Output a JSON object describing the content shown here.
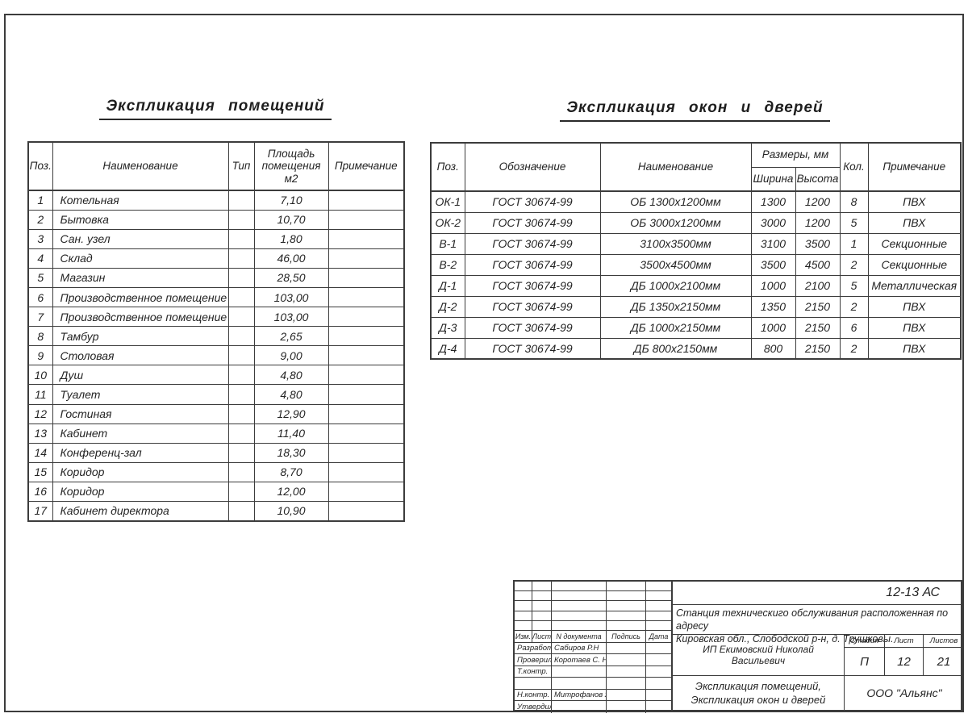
{
  "page": {
    "background": "#ffffff",
    "line_color": "#3c3c3c",
    "text_color": "#242424"
  },
  "rooms_table": {
    "title": "Экспликация помещений",
    "headers": {
      "pos": "Поз.",
      "name": "Наименование",
      "type": "Тип",
      "area": "Площадь\nпомещения\nм2",
      "note": "Примечание"
    },
    "rows": [
      {
        "pos": "1",
        "name": "Котельная",
        "type": "",
        "area": "7,10",
        "note": ""
      },
      {
        "pos": "2",
        "name": "Бытовка",
        "type": "",
        "area": "10,70",
        "note": ""
      },
      {
        "pos": "3",
        "name": "Сан. узел",
        "type": "",
        "area": "1,80",
        "note": ""
      },
      {
        "pos": "4",
        "name": "Склад",
        "type": "",
        "area": "46,00",
        "note": ""
      },
      {
        "pos": "5",
        "name": "Магазин",
        "type": "",
        "area": "28,50",
        "note": ""
      },
      {
        "pos": "6",
        "name": "Производственное помещение",
        "type": "",
        "area": "103,00",
        "note": ""
      },
      {
        "pos": "7",
        "name": "Производственное помещение",
        "type": "",
        "area": "103,00",
        "note": ""
      },
      {
        "pos": "8",
        "name": "Тамбур",
        "type": "",
        "area": "2,65",
        "note": ""
      },
      {
        "pos": "9",
        "name": "Столовая",
        "type": "",
        "area": "9,00",
        "note": ""
      },
      {
        "pos": "10",
        "name": "Душ",
        "type": "",
        "area": "4,80",
        "note": ""
      },
      {
        "pos": "11",
        "name": "Туалет",
        "type": "",
        "area": "4,80",
        "note": ""
      },
      {
        "pos": "12",
        "name": "Гостиная",
        "type": "",
        "area": "12,90",
        "note": ""
      },
      {
        "pos": "13",
        "name": "Кабинет",
        "type": "",
        "area": "11,40",
        "note": ""
      },
      {
        "pos": "14",
        "name": "Конференц-зал",
        "type": "",
        "area": "18,30",
        "note": ""
      },
      {
        "pos": "15",
        "name": "Коридор",
        "type": "",
        "area": "8,70",
        "note": ""
      },
      {
        "pos": "16",
        "name": "Коридор",
        "type": "",
        "area": "12,00",
        "note": ""
      },
      {
        "pos": "17",
        "name": "Кабинет директора",
        "type": "",
        "area": "10,90",
        "note": ""
      }
    ]
  },
  "openings_table": {
    "title": "Экспликация окон и дверей",
    "headers": {
      "pos": "Поз.",
      "designation": "Обозначение",
      "name": "Наименование",
      "sizes": "Размеры, мм",
      "width": "Ширина",
      "height": "Высота",
      "qty": "Кол.",
      "note": "Примечание"
    },
    "rows": [
      {
        "pos": "ОК-1",
        "designation": "ГОСТ 30674-99",
        "name": "ОБ 1300х1200мм",
        "width": "1300",
        "height": "1200",
        "qty": "8",
        "note": "ПВХ"
      },
      {
        "pos": "ОК-2",
        "designation": "ГОСТ 30674-99",
        "name": "ОБ 3000х1200мм",
        "width": "3000",
        "height": "1200",
        "qty": "5",
        "note": "ПВХ"
      },
      {
        "pos": "В-1",
        "designation": "ГОСТ 30674-99",
        "name": "3100х3500мм",
        "width": "3100",
        "height": "3500",
        "qty": "1",
        "note": "Секционные"
      },
      {
        "pos": "В-2",
        "designation": "ГОСТ 30674-99",
        "name": "3500х4500мм",
        "width": "3500",
        "height": "4500",
        "qty": "2",
        "note": "Секционные"
      },
      {
        "pos": "Д-1",
        "designation": "ГОСТ 30674-99",
        "name": "ДБ 1000х2100мм",
        "width": "1000",
        "height": "2100",
        "qty": "5",
        "note": "Металлическая"
      },
      {
        "pos": "Д-2",
        "designation": "ГОСТ 30674-99",
        "name": "ДБ 1350х2150мм",
        "width": "1350",
        "height": "2150",
        "qty": "2",
        "note": "ПВХ"
      },
      {
        "pos": "Д-3",
        "designation": "ГОСТ 30674-99",
        "name": "ДБ 1000х2150мм",
        "width": "1000",
        "height": "2150",
        "qty": "6",
        "note": "ПВХ"
      },
      {
        "pos": "Д-4",
        "designation": "ГОСТ 30674-99",
        "name": "ДБ 800х2150мм",
        "width": "800",
        "height": "2150",
        "qty": "2",
        "note": "ПВХ"
      }
    ]
  },
  "title_block": {
    "doc_code": "12-13 АС",
    "object_description": "Станция техническиго обслуживания расположенная по адресу\nКировская обл., Слободской р-н, д. Трушковы.",
    "client": "ИП Екимовский Николай Васильевич",
    "stage_label": "Стадия",
    "stage_value": "П",
    "sheet_label": "Лист",
    "sheet_value": "12",
    "sheets_label": "Листов",
    "sheets_value": "21",
    "sheet_title": "Экспликация помещений,\nЭкспликация окон и дверей",
    "company": "ООО \"Альянс\"",
    "rev_headers": {
      "izm": "Изм.",
      "list": "Лист",
      "doc": "N документа",
      "sign": "Подпись",
      "date": "Дата"
    },
    "signatures": [
      {
        "role": "Разработал",
        "name": "Сабиров Р.Н"
      },
      {
        "role": "Проверил",
        "name": "Коротаев С. Н."
      },
      {
        "role": "Т.контр.",
        "name": ""
      },
      {
        "role": "",
        "name": ""
      },
      {
        "role": "Н.контр.",
        "name": "Митрофанов Я. А."
      },
      {
        "role": "Утвердил",
        "name": ""
      }
    ]
  }
}
